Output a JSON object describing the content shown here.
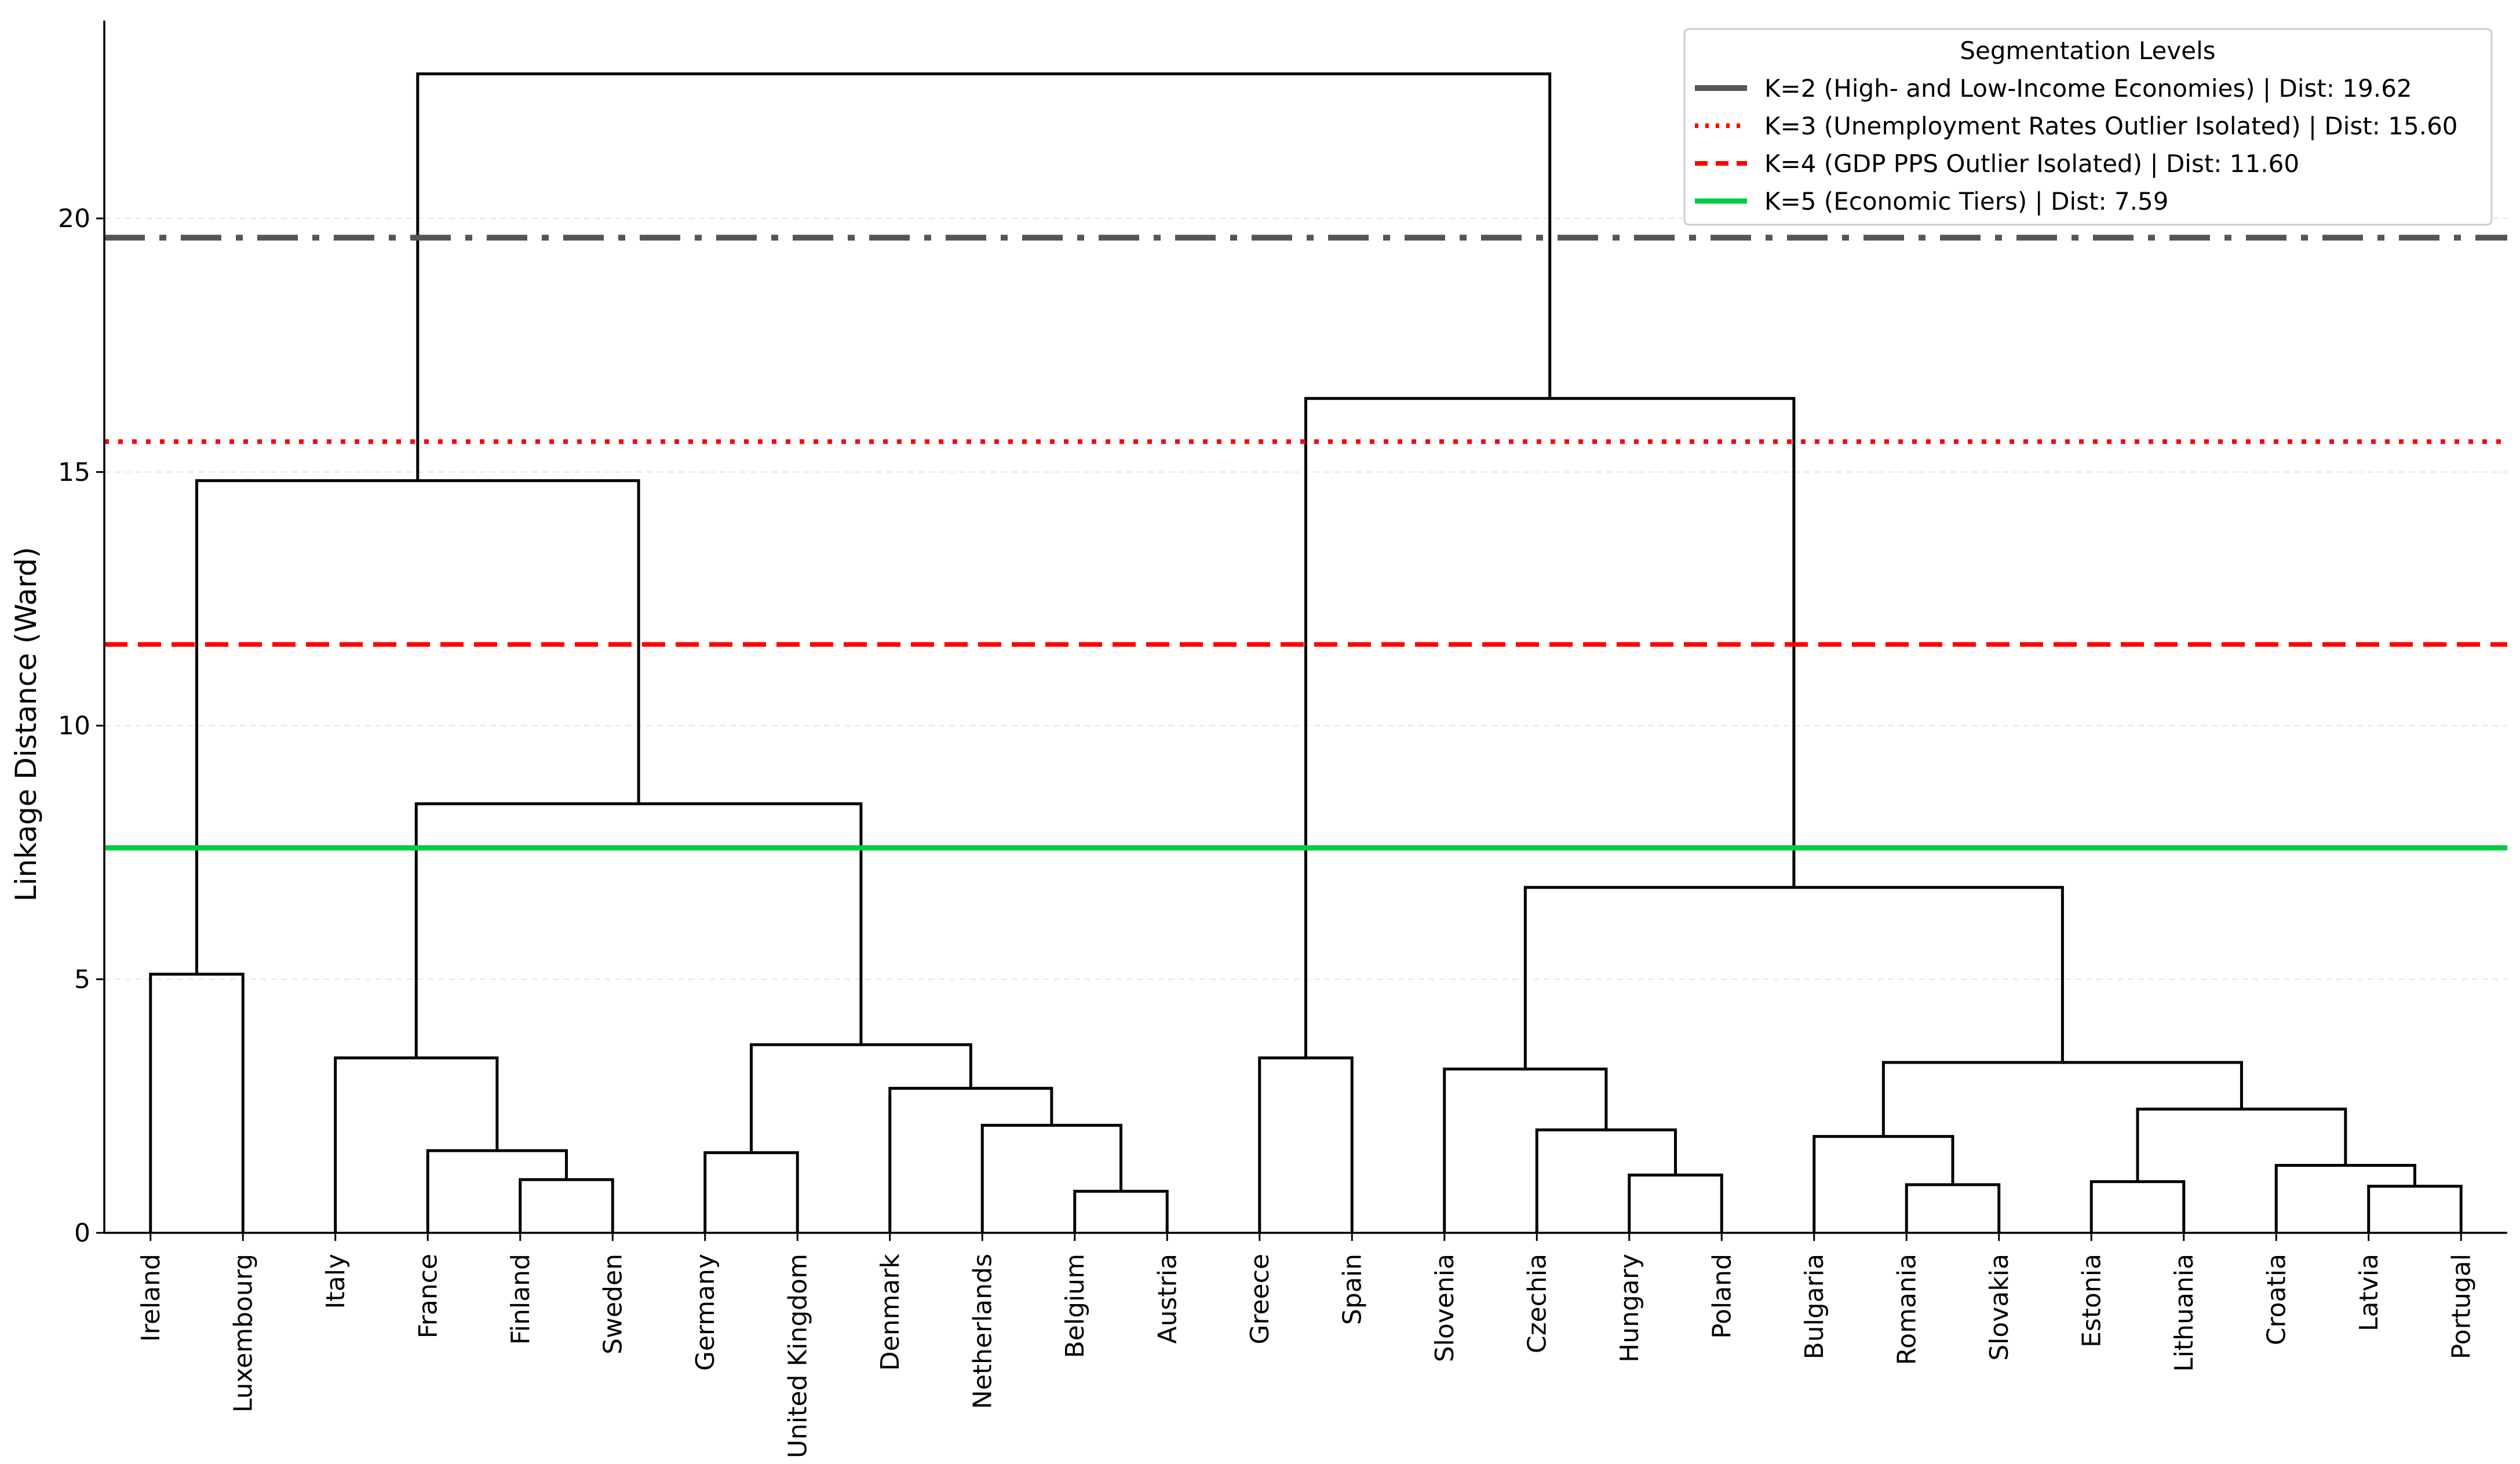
{
  "chart_data": {
    "type": "dendrogram",
    "ylabel": "Linkage Distance (Ward)",
    "ylim": [
      0,
      23.9
    ],
    "yticks": [
      0,
      5,
      10,
      15,
      20
    ],
    "grid": "horizontal dashed",
    "leaves": [
      "Ireland",
      "Luxembourg",
      "Italy",
      "France",
      "Finland",
      "Sweden",
      "Germany",
      "United Kingdom",
      "Denmark",
      "Netherlands",
      "Belgium",
      "Austria",
      "Greece",
      "Spain",
      "Slovenia",
      "Czechia",
      "Hungary",
      "Poland",
      "Bulgaria",
      "Romania",
      "Slovakia",
      "Estonia",
      "Lithuania",
      "Croatia",
      "Latvia",
      "Portugal"
    ],
    "links": [
      {
        "left": "Ireland",
        "right": "Luxembourg",
        "height": 5.1
      },
      {
        "left": "Finland",
        "right": "Sweden",
        "height": 1.05
      },
      {
        "left": "France",
        "right": 1,
        "height": 1.62
      },
      {
        "left": "Italy",
        "right": 2,
        "height": 3.45
      },
      {
        "left": "Germany",
        "right": "United Kingdom",
        "height": 1.58
      },
      {
        "left": "Belgium",
        "right": "Austria",
        "height": 0.82
      },
      {
        "left": "Netherlands",
        "right": 5,
        "height": 2.12
      },
      {
        "left": "Denmark",
        "right": 6,
        "height": 2.85
      },
      {
        "left": 4,
        "right": 7,
        "height": 3.71
      },
      {
        "left": 3,
        "right": 8,
        "height": 8.46
      },
      {
        "left": 0,
        "right": 9,
        "height": 14.83
      },
      {
        "left": "Greece",
        "right": "Spain",
        "height": 3.45
      },
      {
        "left": "Hungary",
        "right": "Poland",
        "height": 1.14
      },
      {
        "left": "Czechia",
        "right": 12,
        "height": 2.03
      },
      {
        "left": "Slovenia",
        "right": 13,
        "height": 3.23
      },
      {
        "left": "Romania",
        "right": "Slovakia",
        "height": 0.95
      },
      {
        "left": "Bulgaria",
        "right": 15,
        "height": 1.9
      },
      {
        "left": "Latvia",
        "right": "Portugal",
        "height": 0.92
      },
      {
        "left": "Croatia",
        "right": 17,
        "height": 1.33
      },
      {
        "left": "Estonia",
        "right": "Lithuania",
        "height": 1.01
      },
      {
        "left": 19,
        "right": 18,
        "height": 2.44
      },
      {
        "left": 16,
        "right": 20,
        "height": 3.36
      },
      {
        "left": 14,
        "right": 21,
        "height": 6.81
      },
      {
        "left": 11,
        "right": 22,
        "height": 16.45
      },
      {
        "left": 10,
        "right": 23,
        "height": 22.85
      }
    ],
    "thresholds": [
      {
        "label": "K=2 (High- and Low-Income Economies) | Dist: 19.62",
        "value": 19.62,
        "color": "#555555",
        "style": "dashdot"
      },
      {
        "label": "K=3 (Unemployment Rates Outlier Isolated) | Dist: 15.60",
        "value": 15.6,
        "color": "#ff0000",
        "style": "dotted"
      },
      {
        "label": "K=4 (GDP PPS Outlier Isolated) | Dist: 11.60",
        "value": 11.6,
        "color": "#ff0000",
        "style": "dashed"
      },
      {
        "label": "K=5 (Economic Tiers) | Dist: 7.59",
        "value": 7.59,
        "color": "#00cc44",
        "style": "solid"
      }
    ],
    "legend": {
      "title": "Segmentation Levels",
      "placement": "top-right"
    }
  }
}
